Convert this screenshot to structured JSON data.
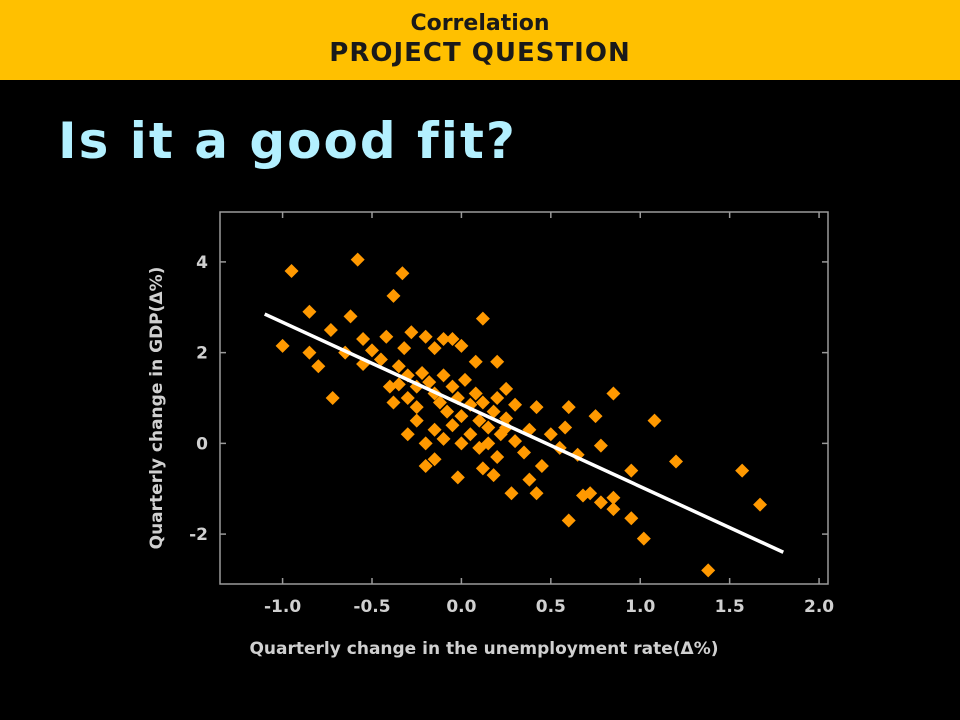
{
  "banner": {
    "line1": "Correlation",
    "line2": "PROJECT QUESTION",
    "color": "#ffc000"
  },
  "slide_title": "Is it a good fit?",
  "chart_data": {
    "type": "scatter",
    "xlabel": "Quarterly change in the unemployment rate(Δ%)",
    "ylabel": "Quarterly change in GDP(Δ%)",
    "xlim": [
      -1.35,
      2.05
    ],
    "ylim": [
      -3.1,
      5.1
    ],
    "x_ticks": [
      -1.0,
      -0.5,
      0.0,
      0.5,
      1.0,
      1.5,
      2.0
    ],
    "x_tick_labels": [
      "-1.0",
      "-0.5",
      "0.0",
      "0.5",
      "1.0",
      "1.5",
      "2.0"
    ],
    "y_ticks": [
      -2,
      0,
      2,
      4
    ],
    "y_tick_labels": [
      "-2",
      "0",
      "2",
      "4"
    ],
    "grid": false,
    "marker": "diamond",
    "point_color": "#ff9900",
    "fit_line_color": "#ffffff",
    "fit_line": {
      "x": [
        -1.1,
        1.8
      ],
      "y": [
        2.85,
        -2.4
      ]
    },
    "points": [
      [
        -0.95,
        3.8
      ],
      [
        -0.58,
        4.05
      ],
      [
        -0.33,
        3.75
      ],
      [
        -0.38,
        3.25
      ],
      [
        -0.85,
        2.9
      ],
      [
        -0.62,
        2.8
      ],
      [
        -1.0,
        2.15
      ],
      [
        -0.85,
        2.0
      ],
      [
        -0.8,
        1.7
      ],
      [
        -0.73,
        2.5
      ],
      [
        -0.65,
        2.0
      ],
      [
        -0.55,
        2.3
      ],
      [
        -0.5,
        2.05
      ],
      [
        -0.42,
        2.35
      ],
      [
        -0.32,
        2.1
      ],
      [
        -0.28,
        2.45
      ],
      [
        -0.72,
        1.0
      ],
      [
        -0.55,
        1.75
      ],
      [
        -0.45,
        1.85
      ],
      [
        -0.35,
        1.7
      ],
      [
        -0.3,
        1.5
      ],
      [
        -0.25,
        1.25
      ],
      [
        -0.2,
        2.35
      ],
      [
        -0.15,
        2.1
      ],
      [
        -0.05,
        2.3
      ],
      [
        0.0,
        2.15
      ],
      [
        0.12,
        2.75
      ],
      [
        0.08,
        1.8
      ],
      [
        0.2,
        1.8
      ],
      [
        0.25,
        1.2
      ],
      [
        -0.35,
        1.3
      ],
      [
        -0.3,
        1.0
      ],
      [
        -0.25,
        0.8
      ],
      [
        -0.22,
        1.55
      ],
      [
        -0.18,
        1.35
      ],
      [
        -0.15,
        1.1
      ],
      [
        -0.12,
        0.9
      ],
      [
        -0.1,
        1.5
      ],
      [
        -0.08,
        0.7
      ],
      [
        -0.05,
        1.25
      ],
      [
        -0.02,
        1.0
      ],
      [
        0.0,
        0.6
      ],
      [
        0.02,
        1.4
      ],
      [
        0.05,
        0.85
      ],
      [
        0.08,
        1.1
      ],
      [
        0.1,
        0.5
      ],
      [
        0.12,
        0.9
      ],
      [
        0.15,
        0.35
      ],
      [
        0.18,
        0.7
      ],
      [
        0.2,
        1.0
      ],
      [
        0.22,
        0.2
      ],
      [
        0.25,
        0.55
      ],
      [
        -0.3,
        0.2
      ],
      [
        -0.25,
        0.5
      ],
      [
        -0.2,
        0.0
      ],
      [
        -0.15,
        0.3
      ],
      [
        -0.1,
        0.1
      ],
      [
        -0.05,
        0.4
      ],
      [
        0.0,
        0.0
      ],
      [
        0.05,
        0.2
      ],
      [
        0.1,
        -0.1
      ],
      [
        0.15,
        0.0
      ],
      [
        0.2,
        -0.3
      ],
      [
        0.25,
        0.35
      ],
      [
        0.3,
        0.05
      ],
      [
        0.35,
        -0.2
      ],
      [
        -0.2,
        -0.5
      ],
      [
        -0.15,
        -0.35
      ],
      [
        -0.02,
        -0.75
      ],
      [
        0.12,
        -0.55
      ],
      [
        0.18,
        -0.7
      ],
      [
        0.28,
        -1.1
      ],
      [
        0.38,
        -0.8
      ],
      [
        0.42,
        -1.1
      ],
      [
        0.45,
        -0.5
      ],
      [
        0.42,
        0.8
      ],
      [
        0.5,
        0.2
      ],
      [
        0.55,
        -0.1
      ],
      [
        0.58,
        0.35
      ],
      [
        0.6,
        0.8
      ],
      [
        0.65,
        -0.25
      ],
      [
        0.6,
        -1.7
      ],
      [
        0.68,
        -1.15
      ],
      [
        0.72,
        -1.1
      ],
      [
        0.78,
        -1.3
      ],
      [
        0.75,
        0.6
      ],
      [
        0.78,
        -0.05
      ],
      [
        0.85,
        1.1
      ],
      [
        0.85,
        -1.2
      ],
      [
        0.85,
        -1.45
      ],
      [
        0.95,
        -0.6
      ],
      [
        0.95,
        -1.65
      ],
      [
        1.02,
        -2.1
      ],
      [
        1.08,
        0.5
      ],
      [
        1.2,
        -0.4
      ],
      [
        1.38,
        -2.8
      ],
      [
        1.57,
        -0.6
      ],
      [
        1.67,
        -1.35
      ],
      [
        0.3,
        0.85
      ],
      [
        0.38,
        0.3
      ],
      [
        -0.1,
        2.3
      ],
      [
        -0.4,
        1.25
      ],
      [
        -0.38,
        0.9
      ]
    ]
  }
}
